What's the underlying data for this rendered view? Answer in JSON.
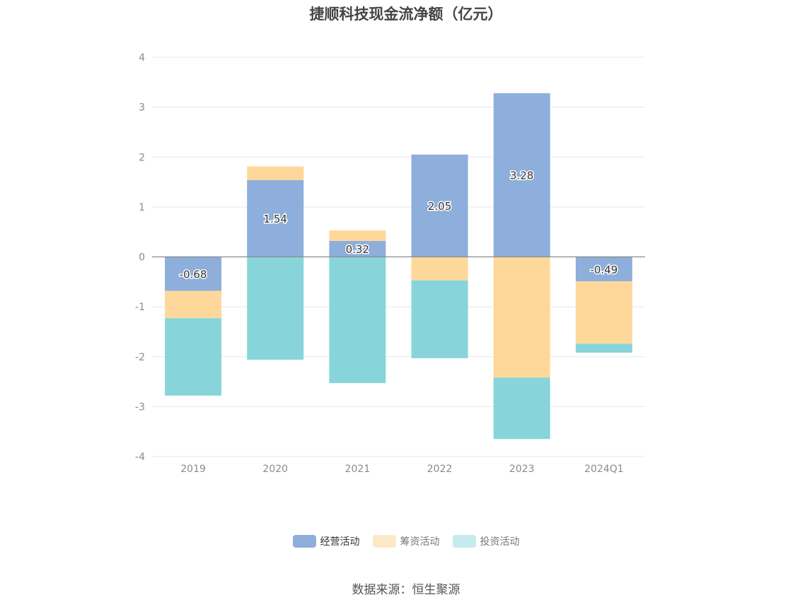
{
  "title": "捷顺科技现金流净额（亿元）",
  "source": "数据来源：恒生聚源",
  "colors": {
    "operating": "#8eaedb",
    "financing": "#fed89a",
    "investing": "#87d5da",
    "operating_legend": "#8eaedb",
    "financing_legend": "#fde9c6",
    "investing_legend": "#c6ebee",
    "grid": "#e6e8ec",
    "axis": "#8a8a8a",
    "tick": "#8a8a8a"
  },
  "legend": [
    {
      "name": "经营活动",
      "color_key": "operating_legend"
    },
    {
      "name": "筹资活动",
      "color_key": "financing_legend"
    },
    {
      "name": "投资活动",
      "color_key": "investing_legend"
    }
  ],
  "chart_data": {
    "type": "bar",
    "stacked": true,
    "categories": [
      "2019",
      "2020",
      "2021",
      "2022",
      "2023",
      "2024Q1"
    ],
    "series": [
      {
        "name": "经营活动",
        "color_key": "operating",
        "values": [
          -0.68,
          1.54,
          0.32,
          2.05,
          3.28,
          -0.49
        ],
        "labels": [
          "-0.68",
          "1.54",
          "0.32",
          "2.05",
          "3.28",
          "-0.49"
        ]
      },
      {
        "name": "筹资活动",
        "color_key": "financing",
        "values": [
          -0.55,
          0.27,
          0.21,
          -0.47,
          -2.42,
          -1.25
        ]
      },
      {
        "name": "投资活动",
        "color_key": "investing",
        "values": [
          -1.55,
          -2.06,
          -2.53,
          -1.56,
          -1.23,
          -0.18
        ]
      }
    ],
    "ylim": [
      -4,
      4
    ],
    "yticks": [
      "4",
      "3",
      "2",
      "1",
      "0",
      "-1",
      "-2",
      "-3",
      "-4"
    ],
    "grid": true,
    "legend_position": "bottom"
  }
}
